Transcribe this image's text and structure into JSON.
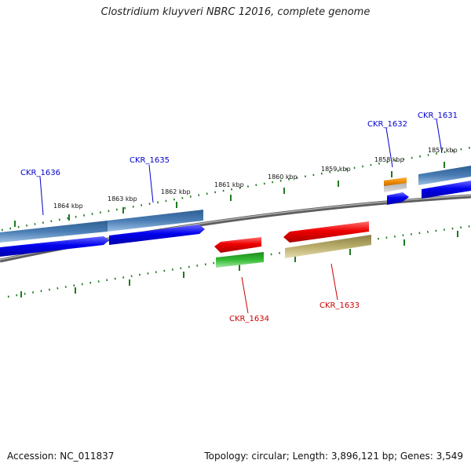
{
  "title": "Clostridium kluyveri NBRC 12016, complete genome",
  "footer": {
    "accession": "Accession: NC_011837",
    "summary": "Topology: circular; Length: 3,896,121 bp; Genes: 3,549"
  },
  "ruler_labels": [
    "1864 kbp",
    "1863 kbp",
    "1862 kbp",
    "1861 kbp",
    "1860 kbp",
    "1859 kbp",
    "1858 kbp",
    "1857 kbp"
  ],
  "genes_top": [
    "CKR_1636",
    "CKR_1635",
    "CKR_1632",
    "CKR_1631"
  ],
  "genes_bottom": [
    "CKR_1634",
    "CKR_1633"
  ],
  "colors": {
    "forward_label": "#0000cc",
    "reverse_label": "#cc0000",
    "cds_blue": "#0000ee",
    "gene_steelblue": "#4a7db5",
    "cds_red": "#ee0000",
    "gene_green": "#33bb33",
    "gene_khaki": "#b9ad6a",
    "gene_orange": "#f08c00",
    "tick_green": "#1f7a1f",
    "backbone": "#777777"
  }
}
